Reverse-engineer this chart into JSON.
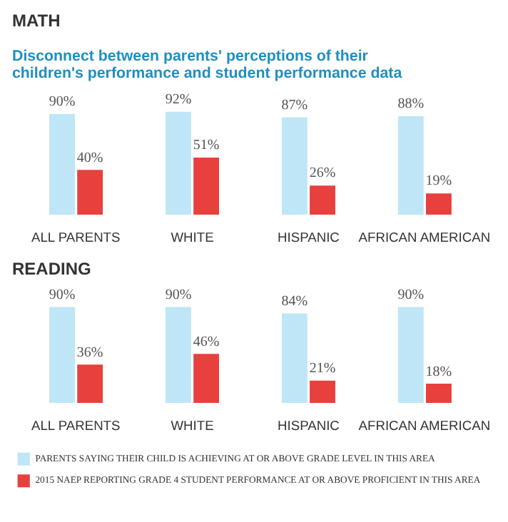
{
  "chart_data": [
    {
      "type": "bar",
      "title": "Disconnect between parents' perceptions of their children's performance and student performance data",
      "subtitle": "MATH",
      "categories": [
        "ALL PARENTS",
        "WHITE",
        "HISPANIC",
        "AFRICAN AMERICAN"
      ],
      "series": [
        {
          "color": "#bfe6f6",
          "values": [
            90,
            92,
            87,
            88
          ],
          "value_labels": [
            "90%",
            "92%",
            "87%",
            "88%"
          ]
        },
        {
          "color": "#e8403c",
          "values": [
            40,
            51,
            26,
            19
          ],
          "value_labels": [
            "40%",
            "51%",
            "26%",
            "19%"
          ]
        }
      ],
      "grid": false,
      "legend": false
    },
    {
      "type": "bar",
      "title": "READING",
      "categories": [
        "ALL PARENTS",
        "WHITE",
        "HISPANIC",
        "AFRICAN AMERICAN"
      ],
      "series": [
        {
          "name": "PARENTS SAYING THEIR CHILD IS ACHIEVING AT OR ABOVE GRADE LEVEL IN THIS AREA",
          "color": "#bfe6f6",
          "values": [
            90,
            90,
            84,
            90
          ],
          "value_labels": [
            "90%",
            "90%",
            "84%",
            "90%"
          ]
        },
        {
          "name": "2015 NAEP REPORTING GRADE 4 STUDENT PERFORMANCE AT OR ABOVE PROFICIENT IN THIS AREA",
          "color": "#e8403c",
          "values": [
            36,
            46,
            21,
            18
          ],
          "value_labels": [
            "36%",
            "46%",
            "21%",
            "18%"
          ]
        }
      ],
      "grid": false,
      "legend": "bottom"
    }
  ]
}
